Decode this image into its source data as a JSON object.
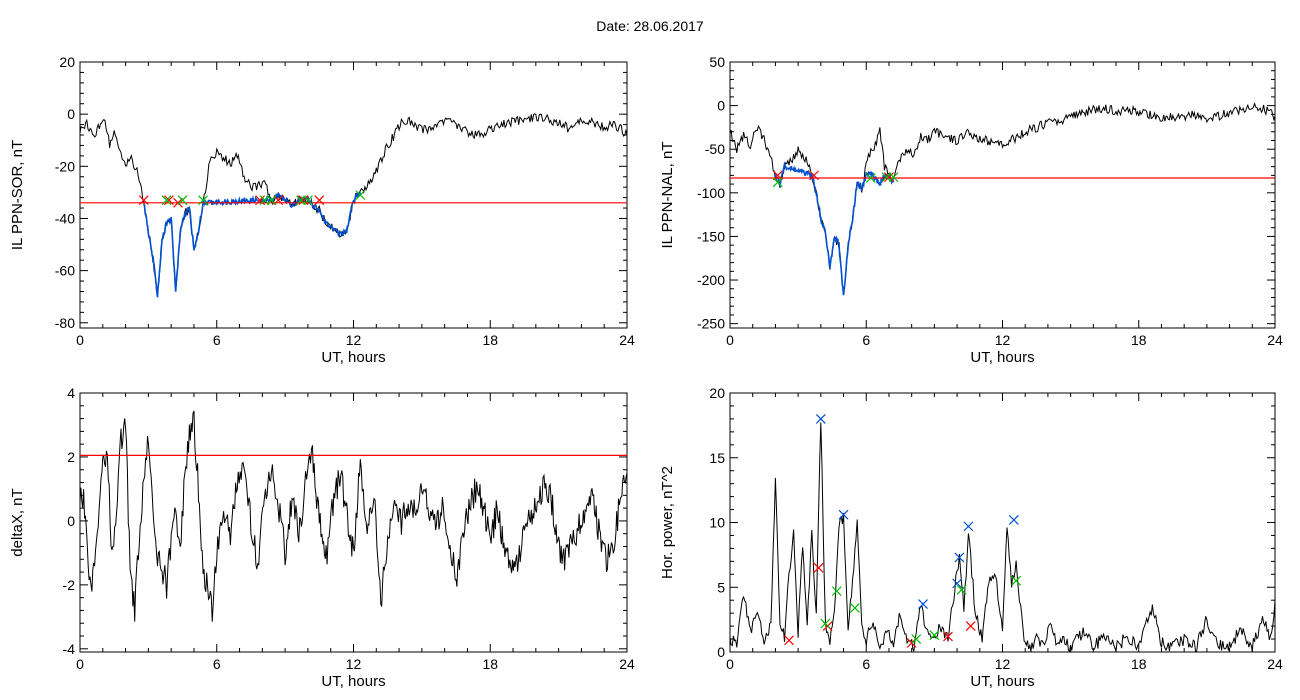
{
  "figure": {
    "title": "Date:  28.06.2017"
  },
  "colors": {
    "signal": "#000000",
    "threshold": "#ff0000",
    "event": "#0050d0",
    "mark_start": "#ff0000",
    "mark_end": "#00bb00",
    "mark_peak": "#0050d0"
  },
  "chart_data": [
    {
      "id": "ppn-sor",
      "type": "line",
      "title": "",
      "xlabel": "UT, hours",
      "ylabel": "IL PPN-SOR, nT",
      "xlim": [
        0,
        24
      ],
      "ylim": [
        -82,
        20
      ],
      "xticks": [
        0,
        6,
        12,
        18,
        24
      ],
      "yticks": [
        20,
        0,
        -20,
        -40,
        -60,
        -80
      ],
      "grid": false,
      "threshold": -34,
      "series": [
        {
          "role": "signal",
          "x": [
            0,
            0.3,
            0.6,
            0.9,
            1.1,
            1.3,
            1.5,
            1.8,
            2.0,
            2.2,
            2.5,
            2.8,
            3.0,
            3.2,
            3.4,
            3.6,
            3.8,
            4.0,
            4.2,
            4.4,
            4.6,
            4.8,
            5.0,
            5.2,
            5.4,
            5.7,
            6.0,
            6.3,
            6.6,
            6.9,
            7.2,
            7.5,
            7.8,
            8.1,
            8.4,
            8.7,
            9.0,
            9.3,
            9.6,
            9.9,
            10.2,
            10.5,
            10.8,
            11.1,
            11.4,
            11.7,
            12.0,
            12.3,
            12.6,
            12.9,
            13.2,
            13.5,
            13.8,
            14.1,
            14.4,
            14.7,
            15.0,
            15.5,
            16.0,
            16.5,
            17.0,
            17.5,
            18.0,
            18.5,
            19.0,
            19.5,
            20.0,
            20.5,
            21.0,
            21.5,
            22.0,
            22.5,
            23.0,
            23.5,
            24.0
          ],
          "y": [
            -6,
            -4,
            -9,
            -4,
            -2,
            -12,
            -8,
            -15,
            -20,
            -16,
            -22,
            -34,
            -45,
            -55,
            -70,
            -48,
            -42,
            -40,
            -68,
            -45,
            -38,
            -36,
            -52,
            -45,
            -34,
            -18,
            -14,
            -17,
            -19,
            -16,
            -24,
            -28,
            -28,
            -26,
            -33,
            -31,
            -33,
            -35,
            -33,
            -32,
            -35,
            -37,
            -42,
            -44,
            -46,
            -45,
            -33,
            -30,
            -27,
            -24,
            -18,
            -12,
            -8,
            -3,
            -2,
            -4,
            -6,
            -5,
            -3,
            -4,
            -7,
            -8,
            -6,
            -4,
            -3,
            -2,
            -1,
            -2,
            -3,
            -6,
            -2,
            -3,
            -5,
            -4,
            -8
          ]
        },
        {
          "role": "event",
          "x": [
            2.8,
            3.0,
            3.2,
            3.4,
            3.6,
            3.8,
            4.0,
            4.2,
            4.4,
            4.6,
            4.8,
            5.0,
            5.2,
            5.4,
            7.8,
            8.1,
            8.4,
            8.7,
            9.0,
            9.3,
            9.6,
            9.9,
            10.2,
            10.5,
            10.8,
            11.1,
            11.4,
            11.7,
            12.0,
            12.3
          ],
          "y": [
            -34,
            -45,
            -55,
            -70,
            -48,
            -42,
            -40,
            -68,
            -45,
            -38,
            -36,
            -52,
            -45,
            -34,
            -33,
            -33,
            -33,
            -31,
            -33,
            -35,
            -33,
            -32,
            -35,
            -37,
            -42,
            -44,
            -46,
            -45,
            -33,
            -30
          ]
        }
      ],
      "marks_start": [
        [
          2.8,
          -33
        ],
        [
          3.9,
          -33
        ],
        [
          4.3,
          -34
        ],
        [
          7.9,
          -33
        ],
        [
          8.7,
          -33
        ],
        [
          9.8,
          -33
        ],
        [
          10.5,
          -33
        ]
      ],
      "marks_end": [
        [
          3.8,
          -33
        ],
        [
          4.5,
          -33
        ],
        [
          5.4,
          -33
        ],
        [
          8.1,
          -33
        ],
        [
          8.4,
          -33
        ],
        [
          9.7,
          -33
        ],
        [
          10.0,
          -33
        ],
        [
          12.3,
          -31
        ]
      ]
    },
    {
      "id": "ppn-nal",
      "type": "line",
      "title": "",
      "xlabel": "UT, hours",
      "ylabel": "IL PPN-NAL, nT",
      "xlim": [
        0,
        24
      ],
      "ylim": [
        -255,
        50
      ],
      "xticks": [
        0,
        6,
        12,
        18,
        24
      ],
      "yticks": [
        50,
        0,
        -50,
        -100,
        -150,
        -200,
        -250
      ],
      "grid": false,
      "threshold": -83,
      "series": [
        {
          "role": "signal",
          "x": [
            0,
            0.3,
            0.6,
            0.9,
            1.2,
            1.5,
            1.8,
            2.0,
            2.2,
            2.4,
            2.7,
            3.0,
            3.3,
            3.6,
            3.8,
            4.0,
            4.2,
            4.4,
            4.6,
            4.8,
            5.0,
            5.2,
            5.4,
            5.6,
            5.8,
            6.0,
            6.2,
            6.4,
            6.6,
            6.8,
            7.0,
            7.2,
            7.5,
            7.8,
            8.1,
            8.4,
            8.7,
            9.0,
            9.5,
            10.0,
            10.5,
            11.0,
            11.5,
            12.0,
            12.5,
            13.0,
            13.5,
            14.0,
            14.5,
            15.0,
            15.5,
            16.0,
            16.5,
            17.0,
            17.5,
            18.0,
            18.5,
            19.0,
            19.5,
            20.0,
            20.5,
            21.0,
            21.5,
            22.0,
            22.5,
            23.0,
            23.5,
            24.0
          ],
          "y": [
            -30,
            -50,
            -35,
            -45,
            -25,
            -40,
            -60,
            -80,
            -90,
            -70,
            -65,
            -50,
            -60,
            -80,
            -100,
            -130,
            -145,
            -185,
            -150,
            -160,
            -220,
            -160,
            -130,
            -88,
            -95,
            -70,
            -50,
            -45,
            -25,
            -70,
            -80,
            -88,
            -60,
            -50,
            -55,
            -35,
            -40,
            -30,
            -35,
            -40,
            -30,
            -38,
            -42,
            -44,
            -38,
            -30,
            -25,
            -20,
            -18,
            -12,
            -8,
            -5,
            -4,
            -6,
            -5,
            -8,
            -10,
            -15,
            -12,
            -14,
            -10,
            -15,
            -12,
            -8,
            -5,
            -2,
            -4,
            -12
          ]
        },
        {
          "role": "event",
          "x": [
            2.0,
            2.2,
            2.4,
            3.6,
            3.8,
            4.0,
            4.2,
            4.4,
            4.6,
            4.8,
            5.0,
            5.2,
            5.4,
            5.6,
            5.8,
            6.0,
            6.2,
            6.6,
            6.8,
            7.0,
            7.2
          ],
          "y": [
            -80,
            -90,
            -70,
            -80,
            -100,
            -130,
            -145,
            -185,
            -150,
            -160,
            -220,
            -160,
            -130,
            -88,
            -95,
            -80,
            -78,
            -90,
            -80,
            -82,
            -88
          ]
        }
      ],
      "marks_start": [
        [
          2.1,
          -80
        ],
        [
          3.7,
          -80
        ],
        [
          7.0,
          -82
        ]
      ],
      "marks_end": [
        [
          2.1,
          -88
        ],
        [
          6.2,
          -83
        ],
        [
          6.9,
          -82
        ],
        [
          7.2,
          -82
        ]
      ]
    },
    {
      "id": "deltax",
      "type": "line",
      "title": "",
      "xlabel": "UT, hours",
      "ylabel": "deltaX, nT",
      "xlim": [
        0,
        24
      ],
      "ylim": [
        -4.1,
        4
      ],
      "xticks": [
        0,
        6,
        12,
        18,
        24
      ],
      "yticks": [
        4,
        2,
        0,
        -2,
        -4
      ],
      "grid": false,
      "threshold": 2.05,
      "series": [
        {
          "role": "signal",
          "x": [
            0,
            0.2,
            0.4,
            0.6,
            0.8,
            1.0,
            1.2,
            1.4,
            1.6,
            1.8,
            2.0,
            2.2,
            2.4,
            2.6,
            2.8,
            3.0,
            3.2,
            3.4,
            3.6,
            3.8,
            4.0,
            4.2,
            4.4,
            4.6,
            4.8,
            5.0,
            5.2,
            5.4,
            5.6,
            5.8,
            6.0,
            6.3,
            6.6,
            6.9,
            7.2,
            7.5,
            7.8,
            8.1,
            8.4,
            8.7,
            9.0,
            9.3,
            9.6,
            9.9,
            10.2,
            10.5,
            10.8,
            11.1,
            11.4,
            11.7,
            12.0,
            12.3,
            12.6,
            12.9,
            13.2,
            13.5,
            13.8,
            14.1,
            14.4,
            14.7,
            15.0,
            15.3,
            15.6,
            15.9,
            16.2,
            16.5,
            16.8,
            17.1,
            17.4,
            17.7,
            18.0,
            18.3,
            18.6,
            18.9,
            19.2,
            19.5,
            19.8,
            20.1,
            20.4,
            20.7,
            21.0,
            21.3,
            21.6,
            21.9,
            22.2,
            22.5,
            22.8,
            23.1,
            23.4,
            23.7,
            24.0
          ],
          "y": [
            1.0,
            0.5,
            -2.2,
            -1.5,
            -0.5,
            1.8,
            2.1,
            -1.0,
            0.5,
            2.5,
            3.0,
            -1.5,
            -2.8,
            -0.5,
            1.5,
            2.4,
            0.5,
            -1.0,
            -1.5,
            -2.0,
            -0.8,
            0.5,
            -1.0,
            1.5,
            2.8,
            3.0,
            1.0,
            -1.5,
            -2.2,
            -2.8,
            -1.0,
            0.5,
            -0.5,
            1.2,
            1.8,
            0.0,
            -1.5,
            0.8,
            1.5,
            0.5,
            -1.0,
            0.8,
            -0.5,
            1.2,
            2.0,
            0.0,
            -1.2,
            0.5,
            1.5,
            0.2,
            -1.0,
            1.8,
            -0.5,
            1.0,
            -2.5,
            -0.5,
            0.8,
            0.0,
            0.6,
            0.3,
            1.2,
            0.5,
            -0.2,
            0.4,
            -0.8,
            -1.8,
            -0.5,
            0.6,
            1.0,
            0.4,
            -0.5,
            0.3,
            -0.8,
            -1.5,
            -1.2,
            -0.3,
            0.2,
            0.5,
            1.2,
            0.6,
            -0.8,
            -1.2,
            -0.5,
            -0.2,
            0.3,
            0.8,
            -0.5,
            -1.3,
            -0.8,
            0.6,
            1.5
          ],
          "sub": "dense"
        }
      ]
    },
    {
      "id": "hor-power",
      "type": "line",
      "title": "",
      "xlabel": "UT, hours",
      "ylabel": "Hor. power, nT^2",
      "xlim": [
        0,
        24
      ],
      "ylim": [
        0,
        20
      ],
      "xticks": [
        0,
        6,
        12,
        18,
        24
      ],
      "yticks": [
        20,
        15,
        10,
        5,
        0
      ],
      "grid": false,
      "series": [
        {
          "role": "signal",
          "x": [
            0,
            0.3,
            0.6,
            0.9,
            1.2,
            1.5,
            1.8,
            2.0,
            2.2,
            2.4,
            2.6,
            2.8,
            3.0,
            3.2,
            3.4,
            3.6,
            3.8,
            4.0,
            4.2,
            4.4,
            4.6,
            4.8,
            5.0,
            5.2,
            5.4,
            5.6,
            5.8,
            6.0,
            6.3,
            6.6,
            6.9,
            7.2,
            7.5,
            7.8,
            8.1,
            8.4,
            8.7,
            9.0,
            9.3,
            9.6,
            9.9,
            10.1,
            10.3,
            10.5,
            10.8,
            11.1,
            11.4,
            11.7,
            12.0,
            12.2,
            12.4,
            12.6,
            12.9,
            13.2,
            13.5,
            13.8,
            14.1,
            14.4,
            14.7,
            15.0,
            15.5,
            16.0,
            16.5,
            17.0,
            17.5,
            18.0,
            18.3,
            18.6,
            19.0,
            19.5,
            20.0,
            20.5,
            21.0,
            21.5,
            22.0,
            22.5,
            23.0,
            23.5,
            23.8,
            24.0
          ],
          "y": [
            1.0,
            0.5,
            4.5,
            1.5,
            3.5,
            0.5,
            2.0,
            13.5,
            2.5,
            1.0,
            6.0,
            9.0,
            1.5,
            8.5,
            2.0,
            9.0,
            3.0,
            18.0,
            2.0,
            1.0,
            3.0,
            9.5,
            10.5,
            2.0,
            5.5,
            10.0,
            2.0,
            1.0,
            2.5,
            0.5,
            1.5,
            0.8,
            3.0,
            1.0,
            0.5,
            3.5,
            1.5,
            1.0,
            2.0,
            1.0,
            5.0,
            7.5,
            3.0,
            9.5,
            3.0,
            1.0,
            5.5,
            6.0,
            1.5,
            10.0,
            5.0,
            7.0,
            1.5,
            0.3,
            1.0,
            0.5,
            2.5,
            0.5,
            1.0,
            0.3,
            1.5,
            0.5,
            1.0,
            0.4,
            1.2,
            0.3,
            2.0,
            3.5,
            0.8,
            0.4,
            1.0,
            0.3,
            2.5,
            0.5,
            0.3,
            1.8,
            0.4,
            2.5,
            1.0,
            4.0
          ]
        }
      ],
      "marks_peak": [
        [
          4.0,
          18.0
        ],
        [
          5.0,
          10.6
        ],
        [
          8.5,
          3.7
        ],
        [
          10.0,
          5.3
        ],
        [
          10.1,
          7.3
        ],
        [
          10.5,
          9.7
        ],
        [
          12.5,
          10.2
        ]
      ],
      "marks_start": [
        [
          2.6,
          0.9
        ],
        [
          3.9,
          6.5
        ],
        [
          4.3,
          2.0
        ],
        [
          8.0,
          0.7
        ],
        [
          9.6,
          1.2
        ],
        [
          10.6,
          2.0
        ]
      ],
      "marks_end": [
        [
          4.2,
          2.2
        ],
        [
          4.7,
          4.7
        ],
        [
          5.5,
          3.4
        ],
        [
          8.2,
          1.0
        ],
        [
          9.0,
          1.3
        ],
        [
          10.2,
          4.8
        ],
        [
          12.6,
          5.5
        ]
      ]
    }
  ]
}
